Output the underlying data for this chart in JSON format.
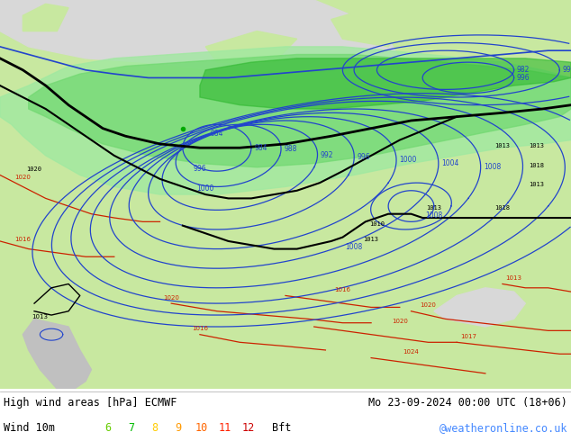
{
  "title_left": "High wind areas [hPa] ECMWF",
  "title_right": "Mo 23-09-2024 00:00 UTC (18+06)",
  "subtitle_left": "Wind 10m",
  "subtitle_right": "@weatheronline.co.uk",
  "bft_nums": [
    "6",
    "7",
    "8",
    "9",
    "10",
    "11",
    "12"
  ],
  "bft_colors": [
    "#66cc00",
    "#00bb00",
    "#ffcc00",
    "#ff9900",
    "#ff6600",
    "#ff2200",
    "#cc0000"
  ],
  "bg_color": "#ffffff",
  "map_bg": "#d8d8d8",
  "land_light": "#c8e8a0",
  "land_dark": "#a8c880",
  "sea_grey": "#c0c0c0",
  "blue_low": "#c0e8f0",
  "green_6bft": "#a0e8a0",
  "green_7bft": "#70d870",
  "green_8bft": "#30b830",
  "contour_blue": "#2244cc",
  "contour_black": "#000000",
  "contour_red": "#cc2200",
  "text_color": "#000000",
  "link_color": "#4488ff",
  "figwidth": 6.34,
  "figheight": 4.9,
  "dpi": 100
}
